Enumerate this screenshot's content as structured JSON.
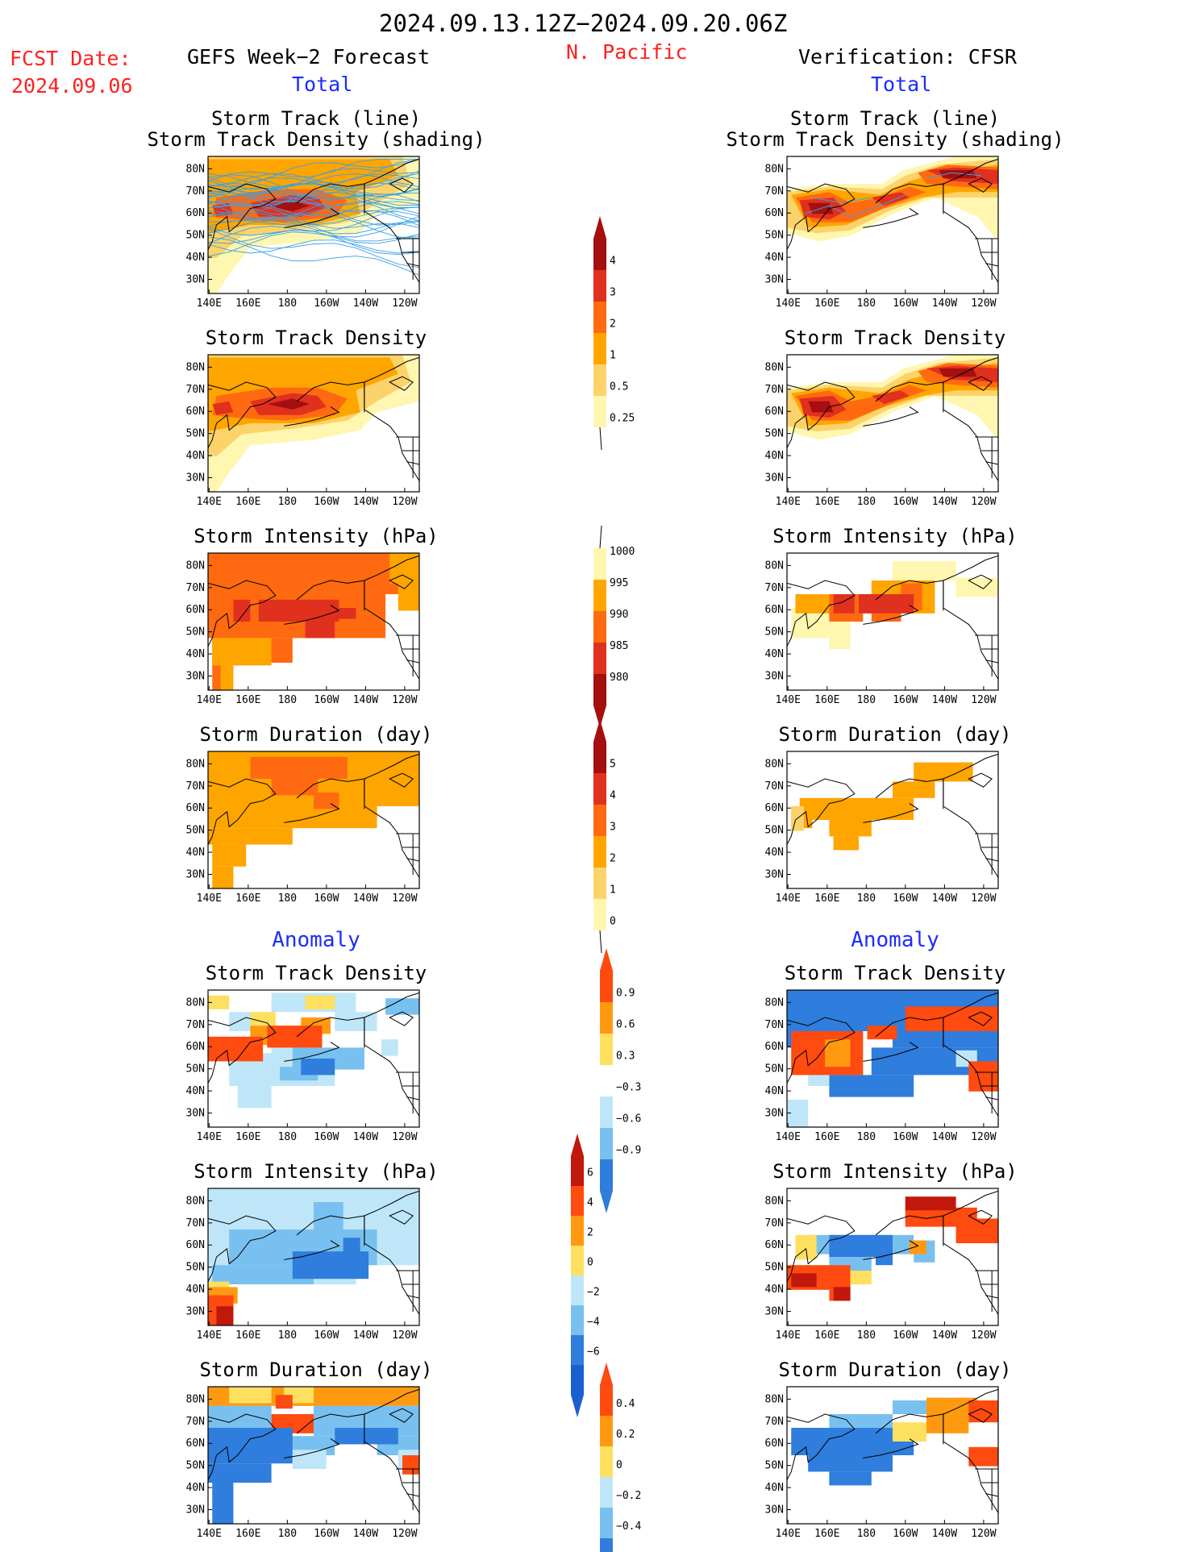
{
  "header": {
    "date_range": "2024.09.13.12Z−2024.09.20.06Z",
    "fcst_label": "FCST Date:",
    "fcst_date": "2024.09.06",
    "left_title": "GEFS Week−2 Forecast",
    "region": "N. Pacific",
    "right_title": "Verification: CFSR",
    "left_subtitle": "Total",
    "right_subtitle": "Total",
    "left_anomaly": "Anomaly",
    "right_anomaly": "Anomaly"
  },
  "axes": {
    "lat_labels": [
      "80N",
      "70N",
      "60N",
      "50N",
      "40N",
      "30N"
    ],
    "lon_labels": [
      "140E",
      "160E",
      "180",
      "160W",
      "140W",
      "120W"
    ]
  },
  "panels": {
    "p1_title_a": "Storm Track (line)",
    "p1_title_b": "Storm Track Density (shading)",
    "p2_title": "Storm Track Density",
    "p3_title": "Storm Intensity (hPa)",
    "p4_title": "Storm Duration (day)",
    "p5_title": "Storm Track Density",
    "p6_title": "Storm Intensity (hPa)",
    "p7_title": "Storm Duration (day)"
  },
  "colorbars": {
    "density": {
      "labels": [
        "4",
        "3",
        "2",
        "1",
        "0.5",
        "0.25"
      ],
      "colors": [
        "#a50f0f",
        "#e0301e",
        "#ff6a10",
        "#ffa500",
        "#fcd36a",
        "#fff6b0"
      ]
    },
    "intensity": {
      "labels": [
        "1000",
        "995",
        "990",
        "985",
        "980"
      ],
      "colors": [
        "#fff6b0",
        "#ffa500",
        "#ff6a10",
        "#e0301e",
        "#a50f0f"
      ]
    },
    "duration": {
      "labels": [
        "5",
        "4",
        "3",
        "2",
        "1",
        "0"
      ],
      "colors": [
        "#a50f0f",
        "#e0301e",
        "#ff6a10",
        "#ffa500",
        "#fcd36a",
        "#fff6b0"
      ]
    },
    "density_anom": {
      "labels": [
        "0.9",
        "0.6",
        "0.3",
        "−0.3",
        "−0.6",
        "−0.9"
      ],
      "colors": [
        "#ff4a10",
        "#ff9a10",
        "#fde060",
        "#ffffff",
        "#bfe6f8",
        "#78c0f0",
        "#2f7ddc"
      ]
    },
    "intensity_anom": {
      "labels": [
        "6",
        "4",
        "2",
        "0",
        "−2",
        "−4",
        "−6"
      ],
      "colors": [
        "#c0180c",
        "#ff4a10",
        "#ff9a10",
        "#fde060",
        "#bfe6f8",
        "#78c0f0",
        "#2f7ddc",
        "#1a5fd0"
      ]
    },
    "duration_anom": {
      "labels": [
        "0.4",
        "0.2",
        "0",
        "−0.2",
        "−0.4"
      ],
      "colors": [
        "#ff4a10",
        "#ff9a10",
        "#fde060",
        "#bfe6f8",
        "#78c0f0",
        "#2f7ddc"
      ]
    }
  },
  "colors": {
    "dark_red": "#a50f0f",
    "red": "#e0301e",
    "orange": "#ff6a10",
    "light_orange": "#ffa500",
    "yellow": "#fcd36a",
    "pale": "#fff6b0",
    "blue_dark": "#1a5fd0",
    "blue": "#2f7ddc",
    "blue_light": "#78c0f0",
    "blue_pale": "#bfe6f8",
    "track_line": "#3aa0e8"
  }
}
